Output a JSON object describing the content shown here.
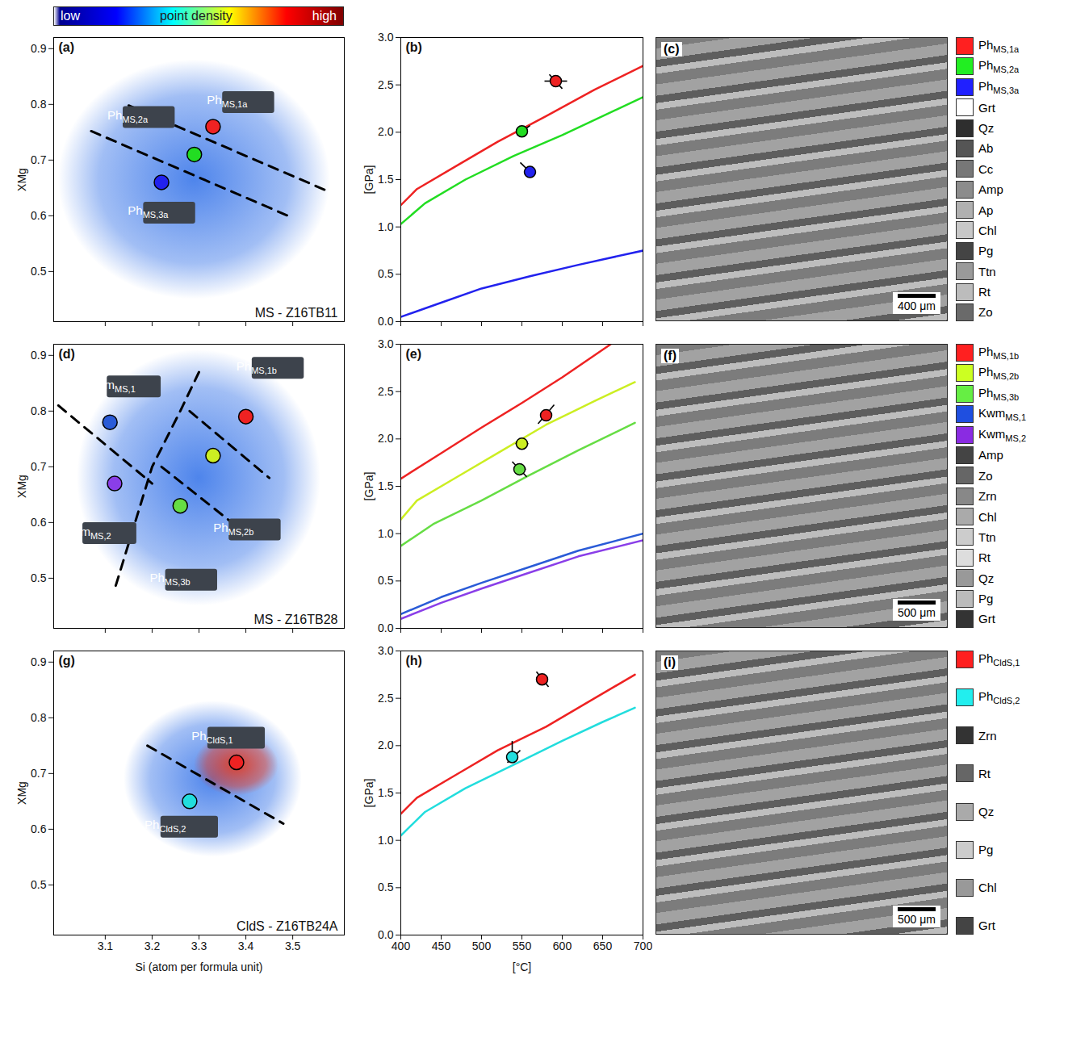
{
  "colorbar": {
    "labels": [
      "low",
      "point density",
      "high"
    ],
    "colors": [
      "#00008f",
      "#0000ff",
      "#00ffff",
      "#ffff00",
      "#ff0000",
      "#800000"
    ]
  },
  "chart_data": [
    {
      "type": "scatter",
      "panel": "(a)",
      "annotation": "MS - Z16TB11",
      "ylabel": "XMg",
      "xlim": [
        2.99,
        3.61
      ],
      "xticks": [
        3.1,
        3.2,
        3.3,
        3.4,
        3.5
      ],
      "ylim": [
        0.41,
        0.92
      ],
      "yticks": [
        0.5,
        0.6,
        0.7,
        0.8,
        0.9
      ],
      "tick_labels": "y",
      "point_cloud": {
        "x": [
          3.0,
          3.58
        ],
        "y": [
          0.45,
          0.88
        ],
        "color": "#2f6fe8"
      },
      "boundaries": {
        "line_style": "dashed",
        "lines": [
          [
            [
              3.15,
              0.798
            ],
            [
              3.57,
              0.646
            ]
          ],
          [
            [
              3.07,
              0.752
            ],
            [
              3.49,
              0.6
            ]
          ]
        ]
      },
      "points": [
        {
          "name": "Ph",
          "sub": "MS,1a",
          "x": 3.33,
          "y": 0.76,
          "color": "#ee2222"
        },
        {
          "name": "Ph",
          "sub": "MS,2a",
          "x": 3.29,
          "y": 0.71,
          "color": "#22dd22"
        },
        {
          "name": "Ph",
          "sub": "MS,3a",
          "x": 3.22,
          "y": 0.66,
          "color": "#2222ee"
        }
      ]
    },
    {
      "type": "line",
      "panel": "(b)",
      "ylabel": "[GPa]",
      "xlim": [
        400,
        700
      ],
      "xticks": [
        400,
        450,
        500,
        550,
        600,
        650,
        700
      ],
      "ylim": [
        0,
        3
      ],
      "yticks": [
        {
          "value": 0,
          "label": "0.0"
        },
        0.5,
        {
          "value": 1,
          "label": "1.0"
        },
        1.5,
        {
          "value": 2,
          "label": "2.0"
        },
        2.5,
        {
          "value": 3,
          "label": "3.0"
        }
      ],
      "tick_labels": "y",
      "series": [
        {
          "color": "#ee2222",
          "x": [
            400,
            420,
            470,
            520,
            580,
            640,
            700
          ],
          "values": [
            1.23,
            1.4,
            1.65,
            1.9,
            2.17,
            2.45,
            2.7
          ]
        },
        {
          "color": "#22dd22",
          "x": [
            400,
            430,
            480,
            540,
            600,
            650,
            700
          ],
          "values": [
            1.03,
            1.25,
            1.5,
            1.75,
            1.97,
            2.17,
            2.37
          ]
        },
        {
          "color": "#2222ee",
          "x": [
            400,
            450,
            500,
            560,
            620,
            700
          ],
          "values": [
            0.05,
            0.2,
            0.35,
            0.48,
            0.6,
            0.75
          ]
        }
      ],
      "points": [
        {
          "x": 592,
          "y": 2.54,
          "color": "#ee2222",
          "errors": [
            [
              578,
              2.54,
              606,
              2.54
            ],
            [
              584,
              2.61,
              600,
              2.46
            ]
          ]
        },
        {
          "x": 550,
          "y": 2.01,
          "color": "#22dd22",
          "errors": [
            [
              544,
              1.97,
              560,
              2.07
            ]
          ]
        },
        {
          "x": 560,
          "y": 1.58,
          "color": "#2222ee",
          "errors": [
            [
              548,
              1.68,
              560,
              1.58
            ]
          ]
        }
      ]
    },
    {
      "type": "scatter",
      "panel": "(d)",
      "annotation": "MS - Z16TB28",
      "ylabel": "XMg",
      "xlim": [
        2.99,
        3.61
      ],
      "xticks": [
        3.1,
        3.2,
        3.3,
        3.4,
        3.5
      ],
      "ylim": [
        0.41,
        0.92
      ],
      "yticks": [
        0.5,
        0.6,
        0.7,
        0.8,
        0.9
      ],
      "tick_labels": "y",
      "point_cloud": {
        "x": [
          3.04,
          3.56
        ],
        "y": [
          0.45,
          0.91
        ],
        "color": "#2f6fe8"
      },
      "boundaries": {
        "line_style": "dashed",
        "lines": [
          [
            [
              3.3,
              0.87
            ],
            [
              3.26,
              0.8
            ],
            [
              3.2,
              0.7
            ],
            [
              3.12,
              0.48
            ]
          ],
          [
            [
              3.0,
              0.81
            ],
            [
              3.2,
              0.67
            ]
          ],
          [
            [
              3.28,
              0.8
            ],
            [
              3.45,
              0.68
            ]
          ],
          [
            [
              3.22,
              0.7
            ],
            [
              3.4,
              0.58
            ]
          ]
        ]
      },
      "points": [
        {
          "name": "Kwm",
          "sub": "MS,1",
          "x": 3.11,
          "y": 0.78,
          "color": "#2a5bd7"
        },
        {
          "name": "Kwm",
          "sub": "MS,2",
          "x": 3.12,
          "y": 0.67,
          "color": "#8a3ee8"
        },
        {
          "name": "Ph",
          "sub": "MS,1b",
          "x": 3.4,
          "y": 0.79,
          "color": "#ee2222"
        },
        {
          "name": "Ph",
          "sub": "MS,2b",
          "x": 3.33,
          "y": 0.72,
          "color": "#ccee22"
        },
        {
          "name": "Ph",
          "sub": "MS,3b",
          "x": 3.26,
          "y": 0.63,
          "color": "#66dd44"
        }
      ]
    },
    {
      "type": "line",
      "panel": "(e)",
      "ylabel": "[GPa]",
      "xlim": [
        400,
        700
      ],
      "xticks": [
        400,
        450,
        500,
        550,
        600,
        650,
        700
      ],
      "ylim": [
        0,
        3
      ],
      "yticks": [
        {
          "value": 0,
          "label": "0.0"
        },
        0.5,
        {
          "value": 1,
          "label": "1.0"
        },
        1.5,
        {
          "value": 2,
          "label": "2.0"
        },
        2.5,
        {
          "value": 3,
          "label": "3.0"
        }
      ],
      "tick_labels": "y",
      "series": [
        {
          "color": "#ee2222",
          "x": [
            400,
            450,
            500,
            550,
            600,
            660
          ],
          "values": [
            1.58,
            1.85,
            2.12,
            2.38,
            2.65,
            3.0
          ]
        },
        {
          "color": "#ccee22",
          "x": [
            400,
            420,
            470,
            520,
            580,
            640,
            690
          ],
          "values": [
            1.15,
            1.35,
            1.6,
            1.85,
            2.15,
            2.4,
            2.6
          ]
        },
        {
          "color": "#66dd44",
          "x": [
            400,
            440,
            500,
            560,
            620,
            690
          ],
          "values": [
            0.87,
            1.1,
            1.35,
            1.62,
            1.88,
            2.17
          ]
        },
        {
          "color": "#2a5bd7",
          "x": [
            400,
            450,
            500,
            560,
            620,
            700
          ],
          "values": [
            0.15,
            0.33,
            0.48,
            0.65,
            0.82,
            1.0
          ]
        },
        {
          "color": "#8a3ee8",
          "x": [
            400,
            450,
            500,
            560,
            620,
            700
          ],
          "values": [
            0.1,
            0.27,
            0.42,
            0.59,
            0.76,
            0.93
          ]
        }
      ],
      "points": [
        {
          "x": 580,
          "y": 2.25,
          "color": "#ee2222",
          "errors": [
            [
              570,
              2.16,
              590,
              2.36
            ]
          ]
        },
        {
          "x": 550,
          "y": 1.95,
          "color": "#ccee22",
          "errors": [
            [
              542,
              1.95,
              558,
              1.95
            ]
          ]
        },
        {
          "x": 547,
          "y": 1.68,
          "color": "#66dd44",
          "errors": [
            [
              538,
              1.76,
              556,
              1.6
            ],
            [
              540,
              1.68,
              555,
              1.68
            ]
          ]
        }
      ]
    },
    {
      "type": "scatter",
      "panel": "(g)",
      "annotation": "CldS - Z16TB24A",
      "xlabel": "Si (atom per formula unit)",
      "ylabel": "XMg",
      "xlim": [
        2.99,
        3.61
      ],
      "xticks": [
        3.1,
        3.2,
        3.3,
        3.4,
        3.5
      ],
      "ylim": [
        0.41,
        0.92
      ],
      "yticks": [
        0.5,
        0.6,
        0.7,
        0.8,
        0.9
      ],
      "point_cloud": {
        "x": [
          3.14,
          3.52
        ],
        "y": [
          0.55,
          0.83
        ],
        "color": "#2f6fe8"
      },
      "dense_core": {
        "x": [
          3.29,
          3.47
        ],
        "y": [
          0.66,
          0.77
        ],
        "color": "#ee3311"
      },
      "boundaries": {
        "line_style": "dashed",
        "lines": [
          [
            [
              3.19,
              0.75
            ],
            [
              3.48,
              0.61
            ]
          ]
        ]
      },
      "points": [
        {
          "name": "Ph",
          "sub": "CldS,1",
          "x": 3.38,
          "y": 0.72,
          "color": "#ee2222"
        },
        {
          "name": "Ph",
          "sub": "CldS,2",
          "x": 3.28,
          "y": 0.65,
          "color": "#22dddd"
        }
      ]
    },
    {
      "type": "line",
      "panel": "(h)",
      "xlabel": "[°C]",
      "ylabel": "[GPa]",
      "xlim": [
        400,
        700
      ],
      "xticks": [
        400,
        450,
        500,
        550,
        600,
        650,
        700
      ],
      "ylim": [
        0,
        3
      ],
      "yticks": [
        {
          "value": 0,
          "label": "0.0"
        },
        0.5,
        {
          "value": 1,
          "label": "1.0"
        },
        1.5,
        {
          "value": 2,
          "label": "2.0"
        },
        2.5,
        {
          "value": 3,
          "label": "3.0"
        }
      ],
      "series": [
        {
          "color": "#ee2222",
          "x": [
            400,
            420,
            470,
            520,
            580,
            640,
            690
          ],
          "values": [
            1.28,
            1.45,
            1.7,
            1.95,
            2.2,
            2.5,
            2.75
          ]
        },
        {
          "color": "#22dddd",
          "x": [
            400,
            430,
            480,
            540,
            600,
            650,
            690
          ],
          "values": [
            1.05,
            1.3,
            1.55,
            1.8,
            2.05,
            2.25,
            2.4
          ]
        }
      ],
      "points": [
        {
          "x": 575,
          "y": 2.7,
          "color": "#ee2222",
          "errors": [
            [
              568,
              2.78,
              583,
              2.62
            ]
          ]
        },
        {
          "x": 538,
          "y": 1.88,
          "color": "#22dddd",
          "errors": [
            [
              538,
              1.88,
              538,
              2.05
            ],
            [
              532,
              1.82,
              548,
              1.95
            ]
          ]
        }
      ]
    }
  ],
  "maps": [
    {
      "panel": "(c)",
      "scale_bar": "400 μm",
      "legend": [
        {
          "name": "Ph",
          "sub": "MS,1a",
          "color": "#ff2020"
        },
        {
          "name": "Ph",
          "sub": "MS,2a",
          "color": "#22ee22"
        },
        {
          "name": "Ph",
          "sub": "MS,3a",
          "color": "#2020ff"
        },
        {
          "name": "Grt",
          "color": "#ffffff"
        },
        {
          "name": "Qz",
          "color": "#2e2e2e"
        },
        {
          "name": "Ab",
          "color": "#555555"
        },
        {
          "name": "Cc",
          "color": "#777777"
        },
        {
          "name": "Amp",
          "color": "#8c8c8c"
        },
        {
          "name": "Ap",
          "color": "#b0b0b0"
        },
        {
          "name": "Chl",
          "color": "#c8c8c8"
        },
        {
          "name": "Pg",
          "color": "#444444"
        },
        {
          "name": "Ttn",
          "color": "#9a9a9a"
        },
        {
          "name": "Rt",
          "color": "#bcbcbc"
        },
        {
          "name": "Zo",
          "color": "#6a6a6a"
        }
      ]
    },
    {
      "panel": "(f)",
      "scale_bar": "500 μm",
      "legend": [
        {
          "name": "Ph",
          "sub": "MS,1b",
          "color": "#ff2020"
        },
        {
          "name": "Ph",
          "sub": "MS,2b",
          "color": "#ccff22"
        },
        {
          "name": "Ph",
          "sub": "MS,3b",
          "color": "#66ee44"
        },
        {
          "name": "Kwm",
          "sub": "MS,1",
          "color": "#1f4fe0"
        },
        {
          "name": "Kwm",
          "sub": "MS,2",
          "color": "#8a2be2"
        },
        {
          "name": "Amp",
          "color": "#444444"
        },
        {
          "name": "Zo",
          "color": "#666666"
        },
        {
          "name": "Zrn",
          "color": "#888888"
        },
        {
          "name": "Chl",
          "color": "#aaaaaa"
        },
        {
          "name": "Ttn",
          "color": "#cccccc"
        },
        {
          "name": "Rt",
          "color": "#dddddd"
        },
        {
          "name": "Qz",
          "color": "#999999"
        },
        {
          "name": "Pg",
          "color": "#bbbbbb"
        },
        {
          "name": "Grt",
          "color": "#333333"
        }
      ]
    },
    {
      "panel": "(i)",
      "scale_bar": "500 μm",
      "legend": [
        {
          "name": "Ph",
          "sub": "CldS,1",
          "color": "#ff2020"
        },
        {
          "name": "Ph",
          "sub": "CldS,2",
          "color": "#22eeee"
        },
        {
          "name": "Zrn",
          "color": "#333333"
        },
        {
          "name": "Rt",
          "color": "#666666"
        },
        {
          "name": "Qz",
          "color": "#aaaaaa"
        },
        {
          "name": "Pg",
          "color": "#cccccc"
        },
        {
          "name": "Chl",
          "color": "#999999"
        },
        {
          "name": "Grt",
          "color": "#444444"
        }
      ]
    }
  ]
}
